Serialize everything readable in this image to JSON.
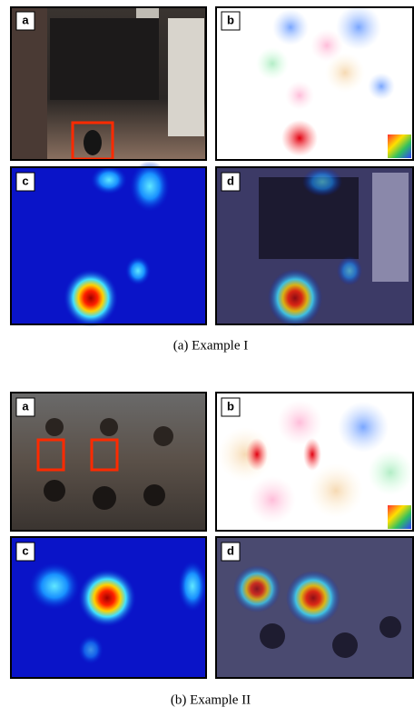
{
  "figures": [
    {
      "panels": [
        "a",
        "b",
        "c",
        "d"
      ],
      "caption": "(a)  Example I"
    },
    {
      "panels": [
        "a",
        "b",
        "c",
        "d"
      ],
      "caption": "(b)  Example II"
    }
  ]
}
